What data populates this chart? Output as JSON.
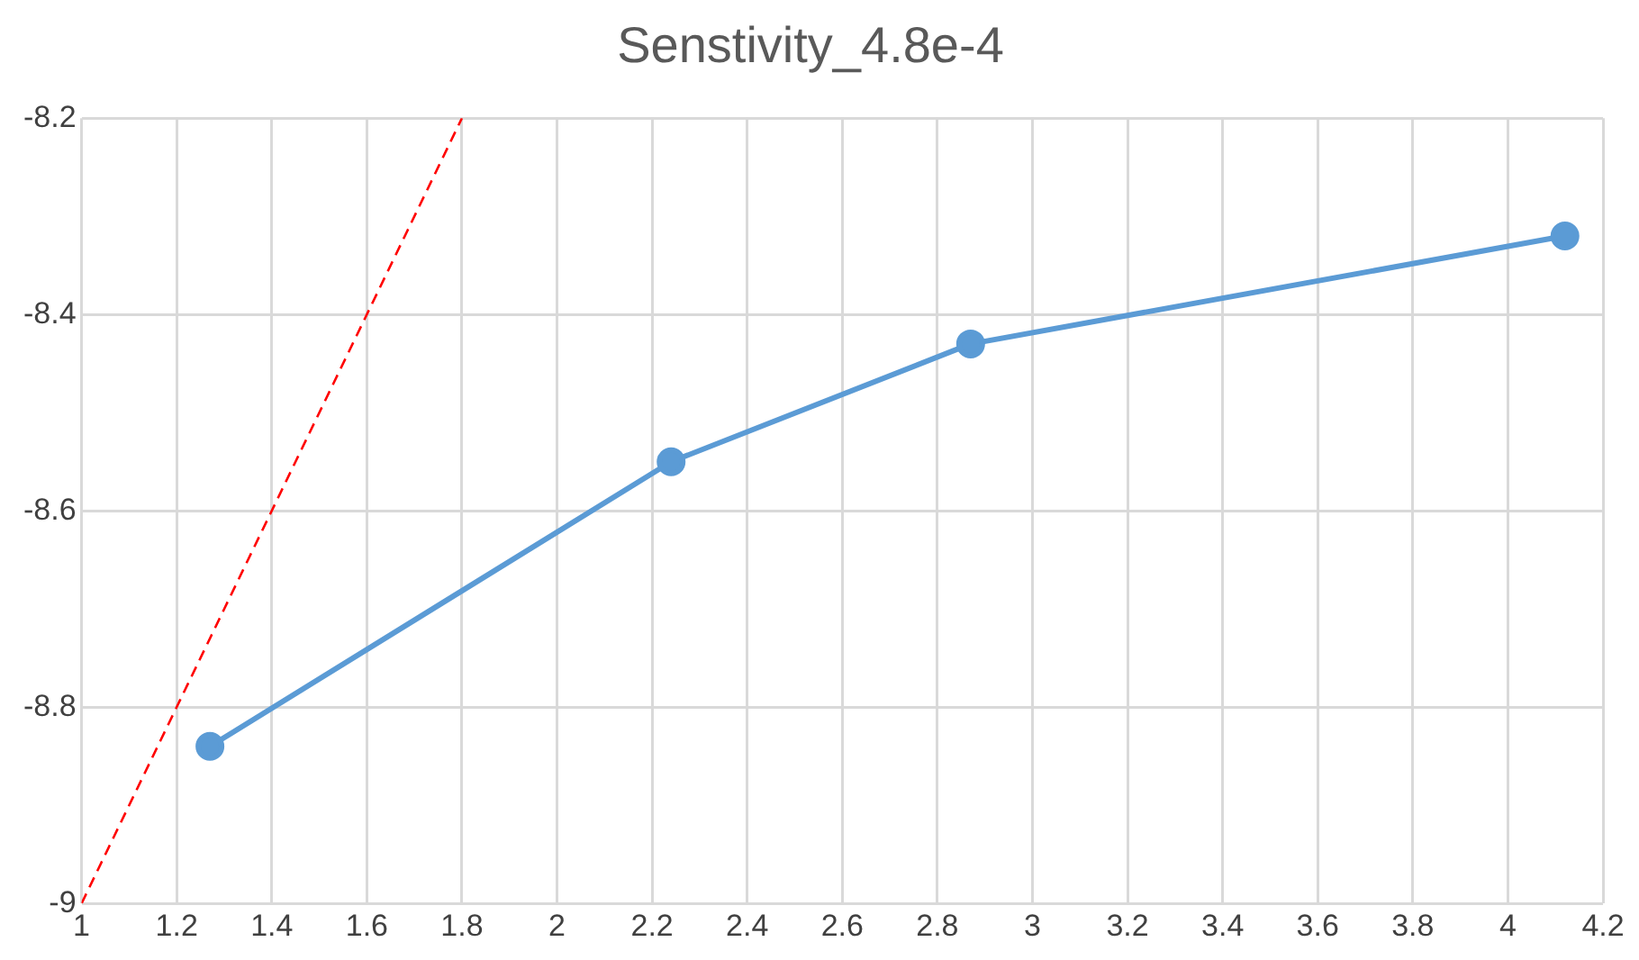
{
  "chart_data": {
    "type": "line",
    "title": "Senstivity_4.8e-4",
    "series": [
      {
        "color": "#5b9bd5",
        "x": [
          1.27,
          2.24,
          2.87,
          4.12
        ],
        "values": [
          -8.84,
          -8.55,
          -8.43,
          -8.32
        ],
        "marker": "circle",
        "line_style": "solid"
      },
      {
        "color": "#ff0000",
        "x": [
          1,
          1.8
        ],
        "values": [
          -9,
          -8.2
        ],
        "marker": "none",
        "line_style": "dashed"
      }
    ],
    "xlim": [
      1,
      4.2
    ],
    "xticks": [
      1,
      1.2,
      1.4,
      1.6,
      1.8,
      2,
      2.2,
      2.4,
      2.6,
      2.8,
      3,
      3.2,
      3.4,
      3.6,
      3.8,
      4,
      4.2
    ],
    "ylim": [
      -9,
      -8.2
    ],
    "yticks": [
      -9,
      -8.8,
      -8.6,
      -8.4,
      -8.2
    ],
    "grid": true,
    "legend": false
  }
}
